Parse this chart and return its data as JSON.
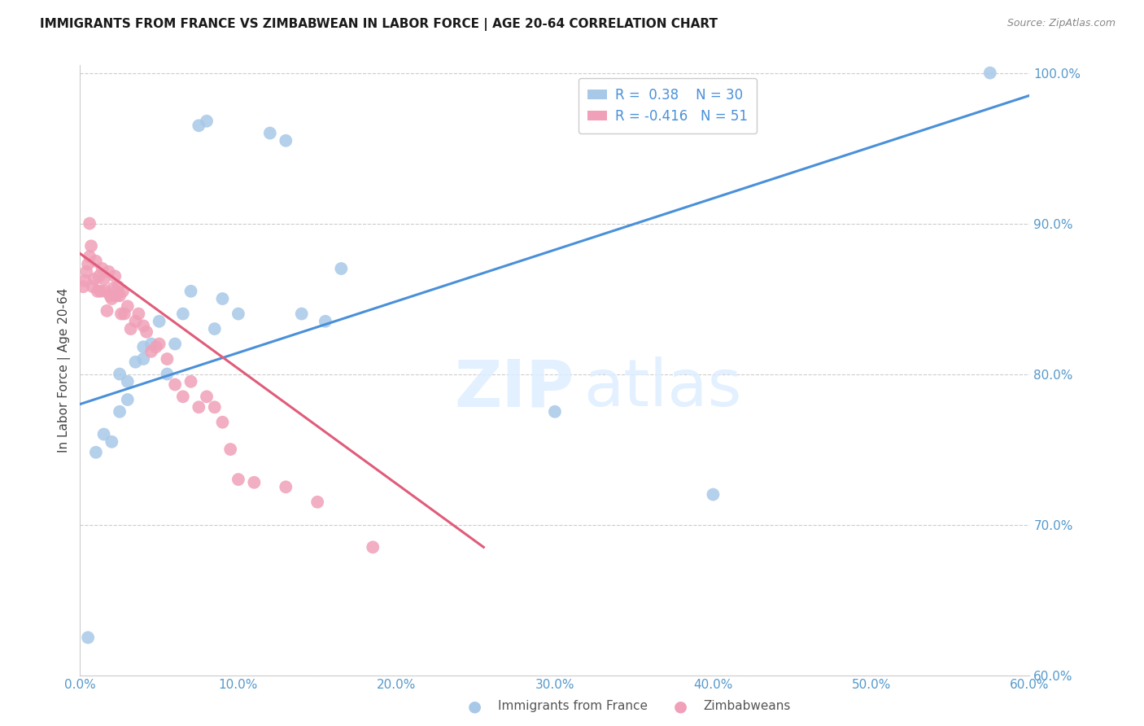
{
  "title": "IMMIGRANTS FROM FRANCE VS ZIMBABWEAN IN LABOR FORCE | AGE 20-64 CORRELATION CHART",
  "source": "Source: ZipAtlas.com",
  "ylabel": "In Labor Force | Age 20-64",
  "xlim": [
    0.0,
    0.6
  ],
  "ylim": [
    0.6,
    1.005
  ],
  "xticks": [
    0.0,
    0.1,
    0.2,
    0.3,
    0.4,
    0.5,
    0.6
  ],
  "xticklabels": [
    "0.0%",
    "10.0%",
    "20.0%",
    "30.0%",
    "40.0%",
    "50.0%",
    "60.0%"
  ],
  "yticks": [
    0.6,
    0.7,
    0.8,
    0.9,
    1.0
  ],
  "yticklabels": [
    "60.0%",
    "70.0%",
    "80.0%",
    "90.0%",
    "100.0%"
  ],
  "france_R": 0.38,
  "france_N": 30,
  "zimbabwe_R": -0.416,
  "zimbabwe_N": 51,
  "france_color": "#a8c8e8",
  "zimbabwe_color": "#f0a0b8",
  "france_line_color": "#4a90d9",
  "zimbabwe_line_color": "#e05c7a",
  "france_scatter_x": [
    0.005,
    0.01,
    0.015,
    0.02,
    0.025,
    0.025,
    0.03,
    0.03,
    0.035,
    0.04,
    0.04,
    0.045,
    0.05,
    0.055,
    0.06,
    0.065,
    0.07,
    0.075,
    0.08,
    0.085,
    0.09,
    0.1,
    0.12,
    0.13,
    0.14,
    0.155,
    0.165,
    0.3,
    0.4,
    0.575
  ],
  "france_scatter_y": [
    0.625,
    0.748,
    0.76,
    0.755,
    0.775,
    0.8,
    0.783,
    0.795,
    0.808,
    0.818,
    0.81,
    0.82,
    0.835,
    0.8,
    0.82,
    0.84,
    0.855,
    0.965,
    0.968,
    0.83,
    0.85,
    0.84,
    0.96,
    0.955,
    0.84,
    0.835,
    0.87,
    0.775,
    0.72,
    1.0
  ],
  "zimbabwe_scatter_x": [
    0.002,
    0.003,
    0.004,
    0.005,
    0.006,
    0.006,
    0.007,
    0.008,
    0.009,
    0.01,
    0.011,
    0.012,
    0.013,
    0.014,
    0.015,
    0.016,
    0.017,
    0.018,
    0.019,
    0.02,
    0.021,
    0.022,
    0.023,
    0.024,
    0.025,
    0.026,
    0.027,
    0.028,
    0.03,
    0.032,
    0.035,
    0.037,
    0.04,
    0.042,
    0.045,
    0.048,
    0.05,
    0.055,
    0.06,
    0.065,
    0.07,
    0.075,
    0.08,
    0.085,
    0.09,
    0.095,
    0.1,
    0.11,
    0.13,
    0.15,
    0.185
  ],
  "zimbabwe_scatter_y": [
    0.858,
    0.862,
    0.868,
    0.873,
    0.9,
    0.878,
    0.885,
    0.858,
    0.863,
    0.875,
    0.855,
    0.865,
    0.855,
    0.87,
    0.863,
    0.855,
    0.842,
    0.868,
    0.852,
    0.85,
    0.857,
    0.865,
    0.852,
    0.858,
    0.852,
    0.84,
    0.855,
    0.84,
    0.845,
    0.83,
    0.835,
    0.84,
    0.832,
    0.828,
    0.815,
    0.818,
    0.82,
    0.81,
    0.793,
    0.785,
    0.795,
    0.778,
    0.785,
    0.778,
    0.768,
    0.75,
    0.73,
    0.728,
    0.725,
    0.715,
    0.685
  ],
  "france_trend_x": [
    0.0,
    0.6
  ],
  "france_trend_y": [
    0.78,
    0.985
  ],
  "zimbabwe_trend_x": [
    0.0,
    0.255
  ],
  "zimbabwe_trend_y": [
    0.88,
    0.685
  ]
}
